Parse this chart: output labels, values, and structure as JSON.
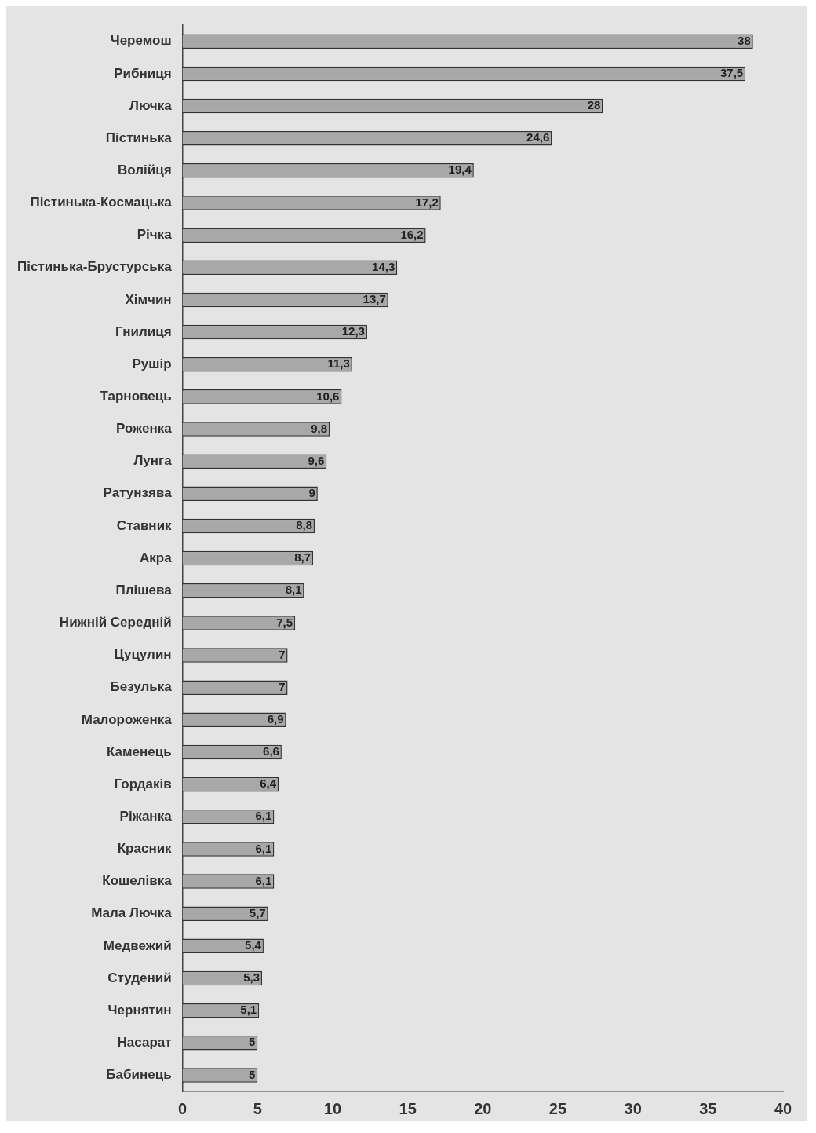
{
  "chart_data": {
    "type": "bar",
    "orientation": "horizontal",
    "categories": [
      "Черемош",
      "Рибниця",
      "Лючка",
      "Пістинька",
      "Волійця",
      "Пістинька-Космацька",
      "Річка",
      "Пістинька-Брустурська",
      "Хімчин",
      "Гнилиця",
      "Рушір",
      "Тарновець",
      "Роженка",
      "Лунга",
      "Ратунзява",
      "Ставник",
      "Акра",
      "Плішева",
      "Нижній Середній",
      "Цуцулин",
      "Безулька",
      "Малороженка",
      "Каменець",
      "Гордаків",
      "Ріжанка",
      "Красник",
      "Кошелівка",
      "Мала Лючка",
      "Медвежий",
      "Студений",
      "Чернятин",
      "Насарат",
      "Бабинець"
    ],
    "values": [
      38,
      37.5,
      28,
      24.6,
      19.4,
      17.2,
      16.2,
      14.3,
      13.7,
      12.3,
      11.3,
      10.6,
      9.8,
      9.6,
      9,
      8.8,
      8.7,
      8.1,
      7.5,
      7,
      7,
      6.9,
      6.6,
      6.4,
      6.1,
      6.1,
      6.1,
      5.7,
      5.4,
      5.3,
      5.1,
      5,
      5
    ],
    "value_labels": [
      "38",
      "37,5",
      "28",
      "24,6",
      "19,4",
      "17,2",
      "16,2",
      "14,3",
      "13,7",
      "12,3",
      "11,3",
      "10,6",
      "9,8",
      "9,6",
      "9",
      "8,8",
      "8,7",
      "8,1",
      "7,5",
      "7",
      "7",
      "6,9",
      "6,6",
      "6,4",
      "6,1",
      "6,1",
      "6,1",
      "5,7",
      "5,4",
      "5,3",
      "5,1",
      "5",
      "5"
    ],
    "color": "#a8a8a8",
    "xlim": [
      0,
      40
    ],
    "xticks": [
      0,
      5,
      10,
      15,
      20,
      25,
      30,
      35,
      40
    ],
    "grid": false,
    "legend": false
  }
}
